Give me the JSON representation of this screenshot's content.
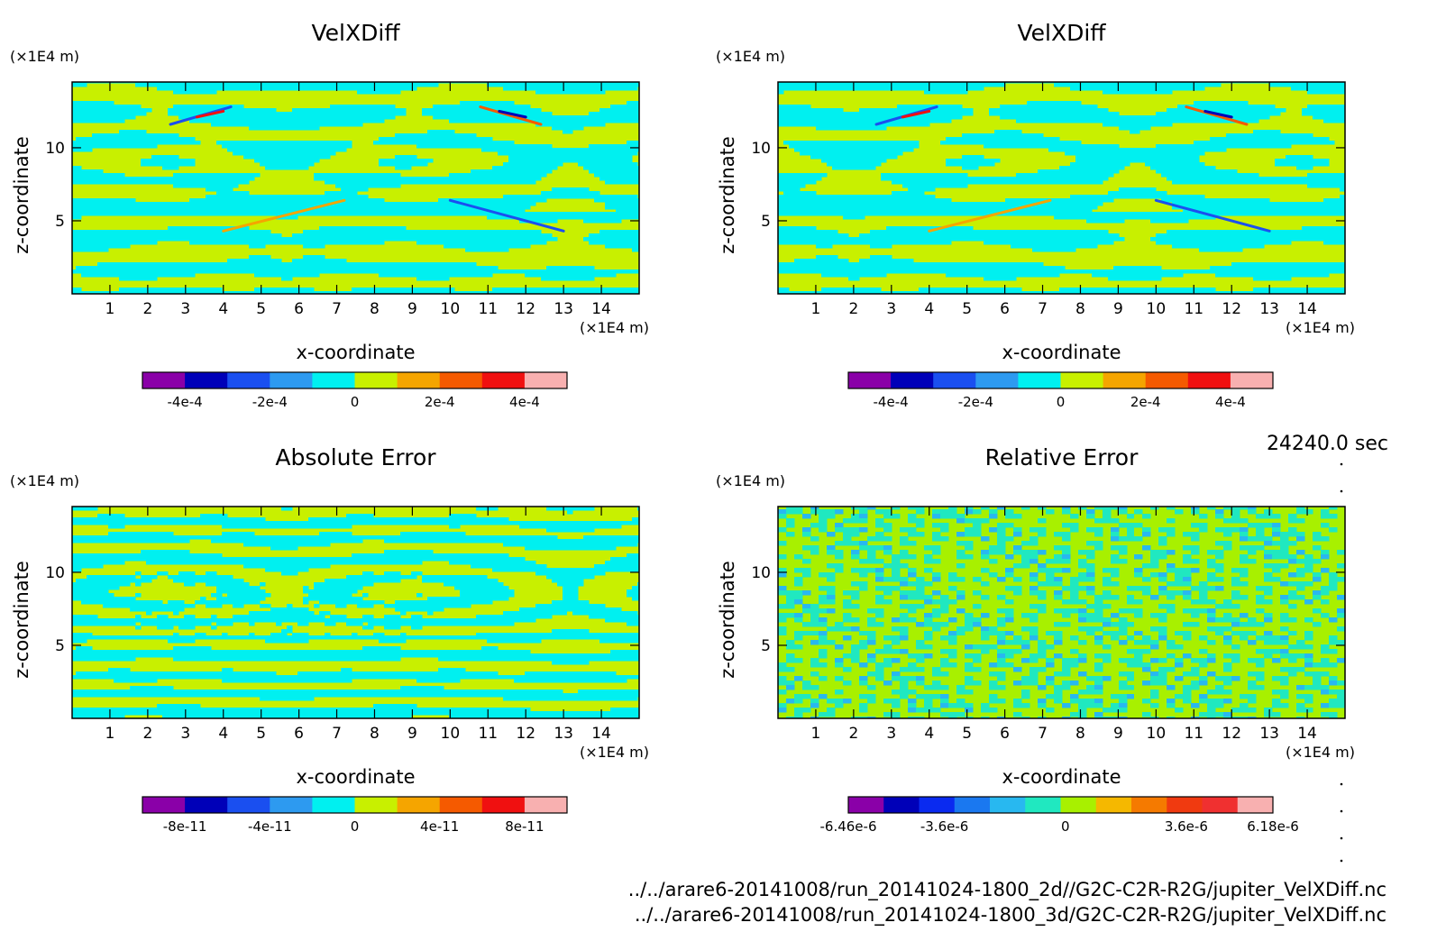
{
  "time_label": "24240.0 sec",
  "footer": {
    "file_2d": "../../arare6-20141008/run_20141024-1800_2d//G2C-C2R-R2G/jupiter_VelXDiff.nc",
    "file_3d": "../../arare6-20141008/run_20141024-1800_3d/G2C-C2R-R2G/jupiter_VelXDiff.nc"
  },
  "chart_data": [
    {
      "type": "heatmap",
      "title": "VelXDiff",
      "xlabel": "x-coordinate",
      "ylabel": "z-coordinate",
      "x_unit": "(×1E4 m)",
      "y_unit": "(×1E4 m)",
      "xlim": [
        0,
        15
      ],
      "ylim": [
        0,
        14.5
      ],
      "x_ticks": [
        1,
        2,
        3,
        4,
        5,
        6,
        7,
        8,
        9,
        10,
        11,
        12,
        13,
        14
      ],
      "y_ticks": [
        5,
        10
      ],
      "pattern": "velx",
      "colorbar": {
        "colors": [
          "#8a00a8",
          "#0000b8",
          "#1a4ff0",
          "#2d9af0",
          "#00f0f0",
          "#c8f000",
          "#f5a500",
          "#f55a00",
          "#f01010",
          "#f8b0b0"
        ],
        "tick_labels": [
          "-4e-4",
          "-2e-4",
          "0",
          "2e-4",
          "4e-4"
        ],
        "tick_values": [
          -0.0004,
          -0.0002,
          0,
          0.0002,
          0.0004
        ],
        "range": [
          -0.0005,
          0.0005
        ]
      }
    },
    {
      "type": "heatmap",
      "title": "VelXDiff",
      "xlabel": "x-coordinate",
      "ylabel": "z-coordinate",
      "x_unit": "(×1E4 m)",
      "y_unit": "(×1E4 m)",
      "xlim": [
        0,
        15
      ],
      "ylim": [
        0,
        14.5
      ],
      "x_ticks": [
        1,
        2,
        3,
        4,
        5,
        6,
        7,
        8,
        9,
        10,
        11,
        12,
        13,
        14
      ],
      "y_ticks": [
        5,
        10
      ],
      "pattern": "velx",
      "colorbar": {
        "colors": [
          "#8a00a8",
          "#0000b8",
          "#1a4ff0",
          "#2d9af0",
          "#00f0f0",
          "#c8f000",
          "#f5a500",
          "#f55a00",
          "#f01010",
          "#f8b0b0"
        ],
        "tick_labels": [
          "-4e-4",
          "-2e-4",
          "0",
          "2e-4",
          "4e-4"
        ],
        "tick_values": [
          -0.0004,
          -0.0002,
          0,
          0.0002,
          0.0004
        ],
        "range": [
          -0.0005,
          0.0005
        ]
      }
    },
    {
      "type": "heatmap",
      "title": "Absolute Error",
      "xlabel": "x-coordinate",
      "ylabel": "z-coordinate",
      "x_unit": "(×1E4 m)",
      "y_unit": "(×1E4 m)",
      "xlim": [
        0,
        15
      ],
      "ylim": [
        0,
        14.5
      ],
      "x_ticks": [
        1,
        2,
        3,
        4,
        5,
        6,
        7,
        8,
        9,
        10,
        11,
        12,
        13,
        14
      ],
      "y_ticks": [
        5,
        10
      ],
      "pattern": "abs",
      "colorbar": {
        "colors": [
          "#8a00a8",
          "#0000b8",
          "#1a4ff0",
          "#2d9af0",
          "#00f0f0",
          "#c8f000",
          "#f5a500",
          "#f55a00",
          "#f01010",
          "#f8b0b0"
        ],
        "tick_labels": [
          "-8e-11",
          "-4e-11",
          "0",
          "4e-11",
          "8e-11"
        ],
        "tick_values": [
          -8e-11,
          -4e-11,
          0,
          4e-11,
          8e-11
        ],
        "range": [
          -1e-10,
          1e-10
        ]
      }
    },
    {
      "type": "heatmap",
      "title": "Relative Error",
      "xlabel": "x-coordinate",
      "ylabel": "z-coordinate",
      "x_unit": "(×1E4 m)",
      "y_unit": "(×1E4 m)",
      "xlim": [
        0,
        15
      ],
      "ylim": [
        0,
        14.5
      ],
      "x_ticks": [
        1,
        2,
        3,
        4,
        5,
        6,
        7,
        8,
        9,
        10,
        11,
        12,
        13,
        14
      ],
      "y_ticks": [
        5,
        10
      ],
      "pattern": "rel",
      "colorbar": {
        "colors": [
          "#8a00a8",
          "#0000b8",
          "#0a2af0",
          "#1a78f0",
          "#28b8f0",
          "#20e8c0",
          "#a8f000",
          "#f5b800",
          "#f57a00",
          "#f03a10",
          "#f03030",
          "#f8b0b0"
        ],
        "tick_labels": [
          "-6.46e-6",
          "-3.6e-6",
          "0",
          "3.6e-6",
          "6.18e-6"
        ],
        "tick_values": [
          -6.46e-06,
          -3.6e-06,
          0,
          3.6e-06,
          6.18e-06
        ],
        "range": [
          -6.46e-06,
          6.18e-06
        ]
      }
    }
  ]
}
